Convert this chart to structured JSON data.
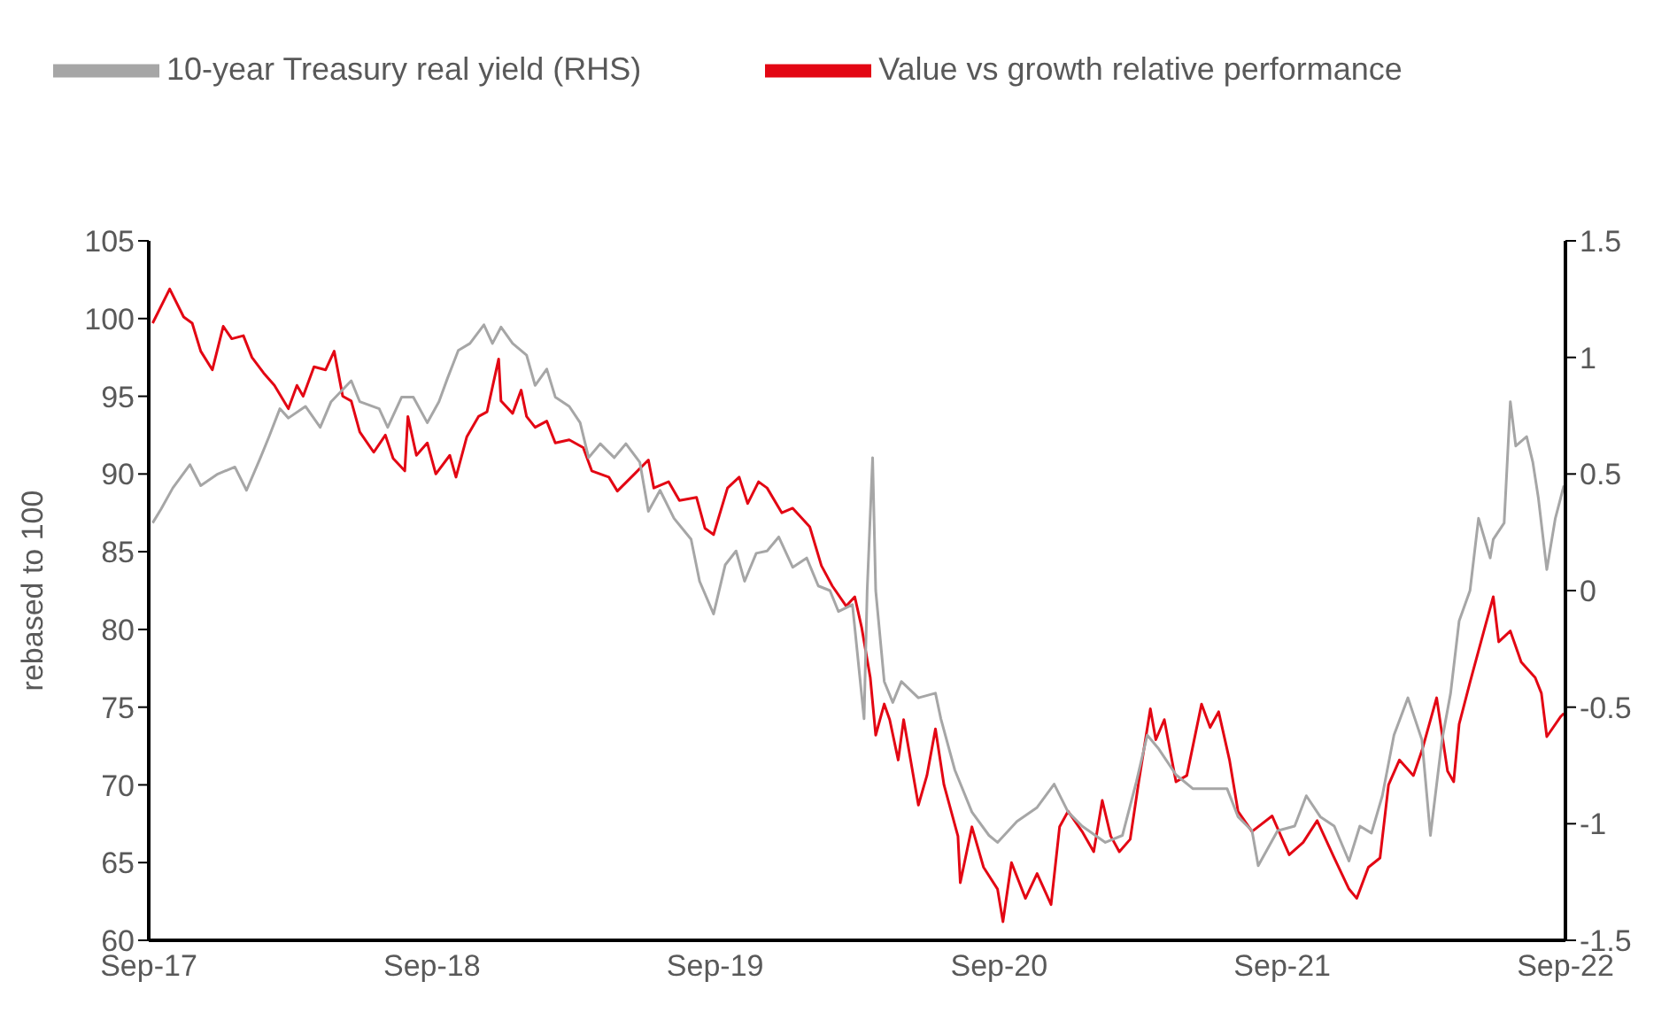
{
  "chart_data": {
    "type": "line",
    "ylabel": "rebased to 100",
    "legend": "top left",
    "xlim": [
      "2017-09-01",
      "2022-09-01"
    ],
    "xticks": [
      {
        "value": "2017-09-01",
        "label": "Sep-17"
      },
      {
        "value": "2018-09-01",
        "label": "Sep-18"
      },
      {
        "value": "2019-09-01",
        "label": "Sep-19"
      },
      {
        "value": "2020-09-01",
        "label": "Sep-20"
      },
      {
        "value": "2021-09-01",
        "label": "Sep-21"
      },
      {
        "value": "2022-09-01",
        "label": "Sep-22"
      }
    ],
    "ylim": [
      60,
      105
    ],
    "yticks": [
      60,
      65,
      70,
      75,
      80,
      85,
      90,
      95,
      100,
      105
    ],
    "y2lim": [
      -1.5,
      1.5
    ],
    "y2ticks": [
      -1.5,
      -1,
      -0.5,
      0,
      0.5,
      1,
      1.5
    ],
    "series": [
      {
        "name": "Value vs growth relative performance",
        "color": "#e30613",
        "x": [
          "2017-09-06",
          "2017-09-28",
          "2017-10-16",
          "2017-10-27",
          "2017-11-07",
          "2017-11-22",
          "2017-12-06",
          "2017-12-17",
          "2018-01-01",
          "2018-01-12",
          "2018-01-27",
          "2018-02-10",
          "2018-02-28",
          "2018-03-11",
          "2018-03-19",
          "2018-04-02",
          "2018-04-17",
          "2018-04-28",
          "2018-05-09",
          "2018-05-20",
          "2018-05-31",
          "2018-06-18",
          "2018-07-03",
          "2018-07-13",
          "2018-07-28",
          "2018-08-01",
          "2018-08-12",
          "2018-08-26",
          "2018-09-06",
          "2018-09-24",
          "2018-10-02",
          "2018-10-16",
          "2018-10-31",
          "2018-11-11",
          "2018-11-26",
          "2018-11-29",
          "2018-12-14",
          "2018-12-25",
          "2019-01-01",
          "2019-01-12",
          "2019-01-27",
          "2019-02-07",
          "2019-02-25",
          "2019-03-15",
          "2019-03-26",
          "2019-04-17",
          "2019-04-28",
          "2019-05-20",
          "2019-06-07",
          "2019-06-14",
          "2019-07-03",
          "2019-07-17",
          "2019-08-08",
          "2019-08-19",
          "2019-08-30",
          "2019-09-17",
          "2019-10-02",
          "2019-10-13",
          "2019-10-27",
          "2019-11-07",
          "2019-11-26",
          "2019-12-10",
          "2020-01-01",
          "2020-01-16",
          "2020-01-30",
          "2020-02-17",
          "2020-02-28",
          "2020-03-08",
          "2020-03-19",
          "2020-03-26",
          "2020-04-06",
          "2020-04-13",
          "2020-04-24",
          "2020-05-01",
          "2020-05-20",
          "2020-05-31",
          "2020-06-11",
          "2020-06-22",
          "2020-07-10",
          "2020-07-13",
          "2020-07-28",
          "2020-08-12",
          "2020-08-30",
          "2020-09-06",
          "2020-09-17",
          "2020-10-05",
          "2020-10-20",
          "2020-11-07",
          "2020-11-18",
          "2020-11-29",
          "2020-12-17",
          "2021-01-01",
          "2021-01-12",
          "2021-01-23",
          "2021-02-03",
          "2021-02-17",
          "2021-02-28",
          "2021-03-15",
          "2021-03-22",
          "2021-04-02",
          "2021-04-17",
          "2021-05-01",
          "2021-05-20",
          "2021-05-31",
          "2021-06-11",
          "2021-06-25",
          "2021-07-06",
          "2021-07-24",
          "2021-08-19",
          "2021-09-10",
          "2021-09-28",
          "2021-10-16",
          "2021-11-07",
          "2021-11-26",
          "2021-12-06",
          "2021-12-21",
          "2022-01-05",
          "2022-01-16",
          "2022-01-30",
          "2022-02-17",
          "2022-02-28",
          "2022-03-19",
          "2022-04-02",
          "2022-04-10",
          "2022-04-17",
          "2022-05-01",
          "2022-05-20",
          "2022-05-31",
          "2022-06-07",
          "2022-06-22",
          "2022-07-06",
          "2022-07-24",
          "2022-08-01",
          "2022-08-08",
          "2022-08-26",
          "2022-08-30"
        ],
        "values": [
          99.7,
          101.9,
          100.1,
          99.7,
          97.9,
          96.7,
          99.5,
          98.7,
          98.9,
          97.5,
          96.5,
          95.7,
          94.2,
          95.7,
          95.0,
          96.9,
          96.7,
          97.9,
          95.0,
          94.7,
          92.7,
          91.4,
          92.5,
          91.0,
          90.2,
          93.7,
          91.2,
          92.0,
          90.0,
          91.2,
          89.8,
          92.4,
          93.7,
          94.0,
          97.4,
          94.7,
          93.9,
          95.4,
          93.7,
          93.0,
          93.4,
          92.0,
          92.2,
          91.7,
          90.2,
          89.8,
          88.9,
          90.0,
          90.9,
          89.1,
          89.5,
          88.3,
          88.5,
          86.5,
          86.1,
          89.1,
          89.8,
          88.1,
          89.5,
          89.1,
          87.5,
          87.8,
          86.6,
          84.1,
          82.8,
          81.5,
          82.1,
          80.1,
          76.9,
          73.2,
          75.2,
          74.2,
          71.6,
          74.2,
          68.7,
          70.6,
          73.6,
          70.0,
          66.7,
          63.7,
          67.3,
          64.7,
          63.3,
          61.2,
          65.0,
          62.7,
          64.3,
          62.3,
          67.3,
          68.3,
          67.0,
          65.7,
          69.0,
          66.7,
          65.7,
          66.5,
          70.2,
          74.9,
          72.9,
          74.2,
          70.2,
          70.6,
          75.2,
          73.7,
          74.7,
          71.6,
          68.3,
          67.0,
          68.0,
          65.5,
          66.3,
          67.7,
          65.3,
          63.3,
          62.7,
          64.7,
          65.3,
          70.0,
          71.6,
          70.6,
          72.2,
          75.6,
          70.9,
          70.2,
          73.9,
          76.6,
          80.1,
          82.1,
          79.2,
          79.9,
          77.9,
          76.9,
          75.9,
          73.1,
          74.4,
          74.6
        ]
      },
      {
        "name": "10-year Treasury real yield (RHS)",
        "color": "#a6a6a6",
        "axis": "y2",
        "x": [
          "2017-09-06",
          "2017-09-17",
          "2017-10-02",
          "2017-10-24",
          "2017-11-07",
          "2017-11-29",
          "2017-12-21",
          "2018-01-05",
          "2018-01-23",
          "2018-02-03",
          "2018-02-17",
          "2018-02-28",
          "2018-03-22",
          "2018-04-10",
          "2018-04-24",
          "2018-05-20",
          "2018-05-31",
          "2018-06-25",
          "2018-07-06",
          "2018-07-24",
          "2018-08-08",
          "2018-08-26",
          "2018-09-10",
          "2018-09-21",
          "2018-10-05",
          "2018-10-20",
          "2018-11-07",
          "2018-11-18",
          "2018-11-29",
          "2018-12-14",
          "2019-01-01",
          "2019-01-12",
          "2019-01-27",
          "2019-02-07",
          "2019-02-25",
          "2019-03-11",
          "2019-03-22",
          "2019-04-06",
          "2019-04-24",
          "2019-05-09",
          "2019-05-27",
          "2019-06-07",
          "2019-06-22",
          "2019-07-10",
          "2019-08-01",
          "2019-08-12",
          "2019-08-30",
          "2019-09-14",
          "2019-09-28",
          "2019-10-09",
          "2019-10-24",
          "2019-11-07",
          "2019-11-22",
          "2019-12-10",
          "2019-12-28",
          "2020-01-12",
          "2020-01-27",
          "2020-02-07",
          "2020-02-25",
          "2020-03-11",
          "2020-03-15",
          "2020-03-22",
          "2020-03-26",
          "2020-04-06",
          "2020-04-17",
          "2020-04-28",
          "2020-05-20",
          "2020-06-11",
          "2020-06-18",
          "2020-07-06",
          "2020-07-28",
          "2020-08-19",
          "2020-08-30",
          "2020-09-24",
          "2020-10-20",
          "2020-11-11",
          "2020-11-29",
          "2020-12-17",
          "2021-01-16",
          "2021-02-07",
          "2021-02-25",
          "2021-03-11",
          "2021-03-26",
          "2021-04-17",
          "2021-05-09",
          "2021-05-31",
          "2021-06-22",
          "2021-07-06",
          "2021-07-24",
          "2021-08-01",
          "2021-08-26",
          "2021-09-17",
          "2021-10-02",
          "2021-10-20",
          "2021-11-07",
          "2021-11-26",
          "2021-12-10",
          "2021-12-25",
          "2022-01-08",
          "2022-01-23",
          "2022-02-10",
          "2022-02-28",
          "2022-03-11",
          "2022-03-26",
          "2022-04-06",
          "2022-04-17",
          "2022-05-01",
          "2022-05-12",
          "2022-05-27",
          "2022-05-31",
          "2022-06-14",
          "2022-06-22",
          "2022-06-29",
          "2022-07-13",
          "2022-07-21",
          "2022-07-28",
          "2022-08-08",
          "2022-08-19",
          "2022-08-30"
        ],
        "values": [
          0.29,
          0.35,
          0.44,
          0.54,
          0.45,
          0.5,
          0.53,
          0.43,
          0.57,
          0.66,
          0.78,
          0.74,
          0.79,
          0.7,
          0.81,
          0.9,
          0.81,
          0.78,
          0.7,
          0.83,
          0.83,
          0.72,
          0.81,
          0.91,
          1.03,
          1.06,
          1.14,
          1.06,
          1.13,
          1.06,
          1.01,
          0.88,
          0.95,
          0.83,
          0.79,
          0.72,
          0.57,
          0.63,
          0.57,
          0.63,
          0.55,
          0.34,
          0.43,
          0.31,
          0.22,
          0.04,
          -0.1,
          0.11,
          0.17,
          0.04,
          0.16,
          0.17,
          0.23,
          0.1,
          0.14,
          0.02,
          0.0,
          -0.09,
          -0.06,
          -0.55,
          0.0,
          0.57,
          0.0,
          -0.39,
          -0.48,
          -0.39,
          -0.46,
          -0.44,
          -0.55,
          -0.77,
          -0.95,
          -1.05,
          -1.08,
          -0.99,
          -0.93,
          -0.83,
          -0.95,
          -1.01,
          -1.08,
          -1.05,
          -0.82,
          -0.62,
          -0.68,
          -0.79,
          -0.85,
          -0.85,
          -0.85,
          -0.97,
          -1.03,
          -1.18,
          -1.03,
          -1.01,
          -0.88,
          -0.97,
          -1.01,
          -1.16,
          -1.01,
          -1.04,
          -0.88,
          -0.62,
          -0.46,
          -0.64,
          -1.05,
          -0.64,
          -0.44,
          -0.13,
          0.0,
          0.31,
          0.14,
          0.22,
          0.29,
          0.81,
          0.62,
          0.66,
          0.55,
          0.4,
          0.09,
          0.31,
          0.45
        ]
      }
    ]
  }
}
